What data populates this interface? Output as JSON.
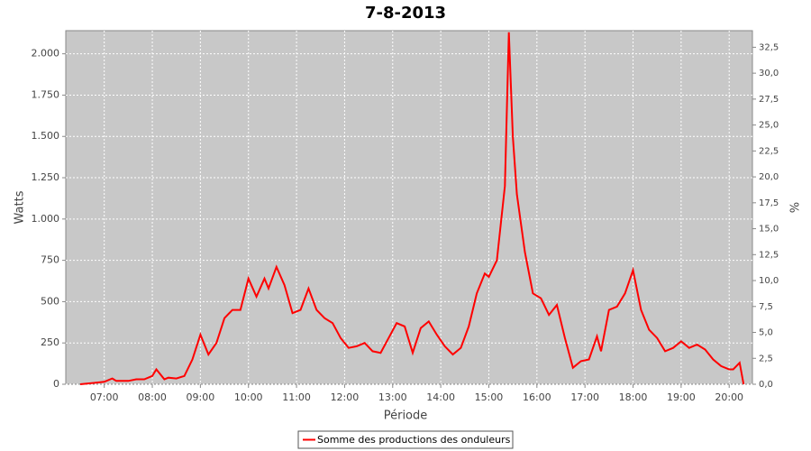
{
  "chart_data": {
    "type": "line",
    "title": "7-8-2013",
    "x_label": "Période",
    "y_label": "Watts",
    "y2_label": "%",
    "x": [
      "06:30",
      "06:40",
      "06:50",
      "07:00",
      "07:10",
      "07:15",
      "07:30",
      "07:40",
      "07:50",
      "08:00",
      "08:05",
      "08:15",
      "08:20",
      "08:30",
      "08:40",
      "08:50",
      "09:00",
      "09:10",
      "09:20",
      "09:30",
      "09:40",
      "09:50",
      "10:00",
      "10:10",
      "10:20",
      "10:25",
      "10:35",
      "10:45",
      "10:55",
      "11:05",
      "11:15",
      "11:25",
      "11:35",
      "11:45",
      "11:55",
      "12:05",
      "12:15",
      "12:25",
      "12:35",
      "12:45",
      "12:55",
      "13:05",
      "13:15",
      "13:25",
      "13:35",
      "13:45",
      "13:55",
      "14:05",
      "14:15",
      "14:25",
      "14:35",
      "14:45",
      "14:55",
      "15:00",
      "15:10",
      "15:20",
      "15:25",
      "15:30",
      "15:35",
      "15:45",
      "15:55",
      "16:05",
      "16:15",
      "16:25",
      "16:35",
      "16:45",
      "16:55",
      "17:05",
      "17:15",
      "17:20",
      "17:30",
      "17:40",
      "17:50",
      "18:00",
      "18:10",
      "18:20",
      "18:30",
      "18:40",
      "18:50",
      "19:00",
      "19:10",
      "19:20",
      "19:30",
      "19:40",
      "19:50",
      "20:00",
      "20:05",
      "20:13",
      "20:18"
    ],
    "series": [
      {
        "name": "Somme des productions des onduleurs",
        "color": "#ff0000",
        "values": [
          0,
          5,
          10,
          15,
          35,
          20,
          20,
          30,
          30,
          50,
          90,
          30,
          40,
          35,
          50,
          150,
          300,
          180,
          250,
          400,
          450,
          450,
          640,
          530,
          640,
          580,
          710,
          600,
          430,
          450,
          580,
          450,
          400,
          370,
          280,
          220,
          230,
          250,
          200,
          190,
          280,
          370,
          350,
          190,
          340,
          380,
          300,
          230,
          180,
          220,
          350,
          550,
          670,
          650,
          750,
          1200,
          2130,
          1500,
          1150,
          800,
          550,
          520,
          420,
          480,
          280,
          100,
          140,
          150,
          290,
          200,
          450,
          470,
          550,
          690,
          450,
          330,
          280,
          200,
          220,
          260,
          220,
          240,
          210,
          150,
          110,
          90,
          90,
          130,
          0
        ]
      }
    ],
    "xlim": [
      "06:12",
      "20:29"
    ],
    "xticks": [
      "07:00",
      "08:00",
      "09:00",
      "10:00",
      "11:00",
      "12:00",
      "13:00",
      "14:00",
      "15:00",
      "16:00",
      "17:00",
      "18:00",
      "19:00",
      "20:00"
    ],
    "ylim": [
      0,
      2140
    ],
    "yticks": [
      0,
      250,
      500,
      750,
      {
        "value": 1000,
        "label": "1.000"
      },
      {
        "value": 1250,
        "label": "1.250"
      },
      {
        "value": 1500,
        "label": "1.500"
      },
      {
        "value": 1750,
        "label": "1.750"
      },
      {
        "value": 2000,
        "label": "2.000"
      }
    ],
    "y2lim": [
      0,
      34.1
    ],
    "y2ticks": [
      {
        "value": 0,
        "label": "0,0"
      },
      {
        "value": 2.5,
        "label": "2,5"
      },
      {
        "value": 5,
        "label": "5,0"
      },
      {
        "value": 7.5,
        "label": "7,5"
      },
      {
        "value": 10,
        "label": "10,0"
      },
      {
        "value": 12.5,
        "label": "12,5"
      },
      {
        "value": 15,
        "label": "15,0"
      },
      {
        "value": 17.5,
        "label": "17,5"
      },
      {
        "value": 20,
        "label": "20,0"
      },
      {
        "value": 22.5,
        "label": "22,5"
      },
      {
        "value": 25,
        "label": "25,0"
      },
      {
        "value": 27.5,
        "label": "27,5"
      },
      {
        "value": 30,
        "label": "30,0"
      },
      {
        "value": 32.5,
        "label": "32,5"
      }
    ],
    "grid": true,
    "background": "#c8c8c8",
    "legend": "bottom"
  }
}
